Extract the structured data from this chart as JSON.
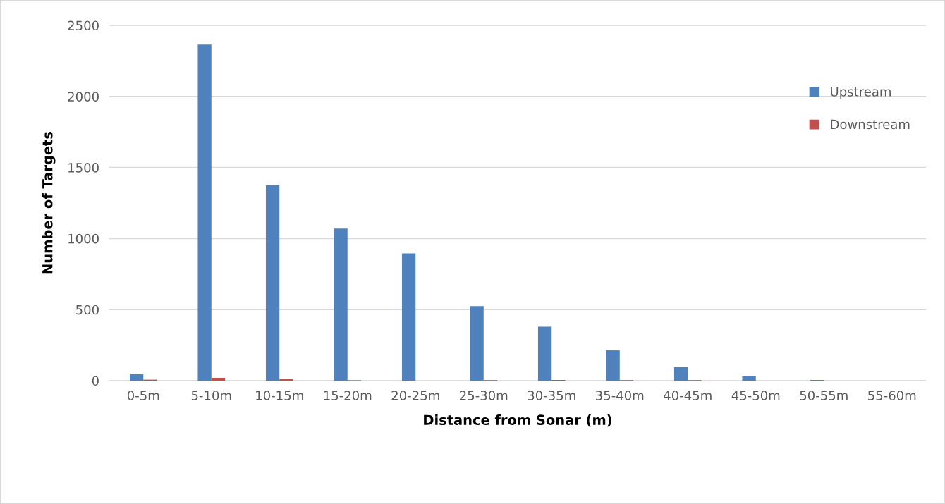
{
  "chart_data": {
    "type": "bar",
    "xlabel": "Distance from Sonar (m)",
    "ylabel": "Number of Targets",
    "categories": [
      "0-5m",
      "5-10m",
      "10-15m",
      "15-20m",
      "20-25m",
      "25-30m",
      "30-35m",
      "35-40m",
      "40-45m",
      "45-50m",
      "50-55m",
      "55-60m"
    ],
    "series": [
      {
        "name": "Upstream",
        "color": "#4f81bd",
        "values": [
          45,
          2365,
          1375,
          1070,
          895,
          525,
          380,
          213,
          95,
          30,
          5,
          0
        ]
      },
      {
        "name": "Downstream",
        "color": "#c0504d",
        "values": [
          7,
          20,
          12,
          3,
          0,
          4,
          5,
          4,
          4,
          0,
          0,
          0
        ]
      }
    ],
    "ylim": [
      0,
      2500
    ],
    "yticks": [
      0,
      500,
      1000,
      1500,
      2000,
      2500
    ],
    "grid": "y",
    "legend": "top right"
  }
}
